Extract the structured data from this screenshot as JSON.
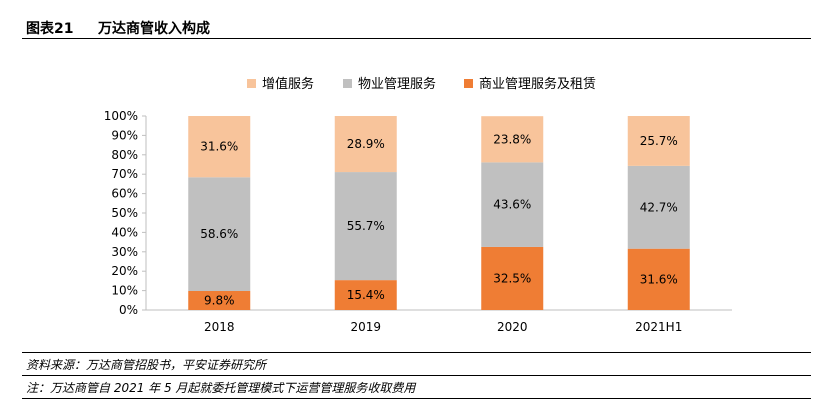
{
  "figure": {
    "number": "图表21",
    "title": "万达商管收入构成",
    "source": "资料来源：万达商管招股书，平安证券研究所",
    "note": "注：万达商管自 2021 年 5 月起就委托管理模式下运营管理服务收取费用"
  },
  "colors": {
    "value_added": "#f8c49b",
    "property_mgmt": "#c0c0c0",
    "commercial": "#ef7d34",
    "axis": "#bfbfbf"
  },
  "chart_data": {
    "type": "bar",
    "stacked": true,
    "categories": [
      "2018",
      "2019",
      "2020",
      "2021H1"
    ],
    "series": [
      {
        "name": "商业管理服务及租赁",
        "values": [
          9.8,
          15.4,
          32.5,
          31.6
        ],
        "labels": [
          "9.8%",
          "15.4%",
          "32.5%",
          "31.6%"
        ]
      },
      {
        "name": "物业管理服务",
        "values": [
          58.6,
          55.7,
          43.6,
          42.7
        ],
        "labels": [
          "58.6%",
          "55.7%",
          "43.6%",
          "42.7%"
        ]
      },
      {
        "name": "增值服务",
        "values": [
          31.6,
          28.9,
          23.8,
          25.7
        ],
        "labels": [
          "31.6%",
          "28.9%",
          "23.8%",
          "25.7%"
        ]
      }
    ],
    "legend_order": [
      "增值服务",
      "物业管理服务",
      "商业管理服务及租赁"
    ],
    "legend_position": "top",
    "yticks": [
      "0%",
      "10%",
      "20%",
      "30%",
      "40%",
      "50%",
      "60%",
      "70%",
      "80%",
      "90%",
      "100%"
    ],
    "ylim": [
      0,
      100
    ],
    "grid": false
  }
}
